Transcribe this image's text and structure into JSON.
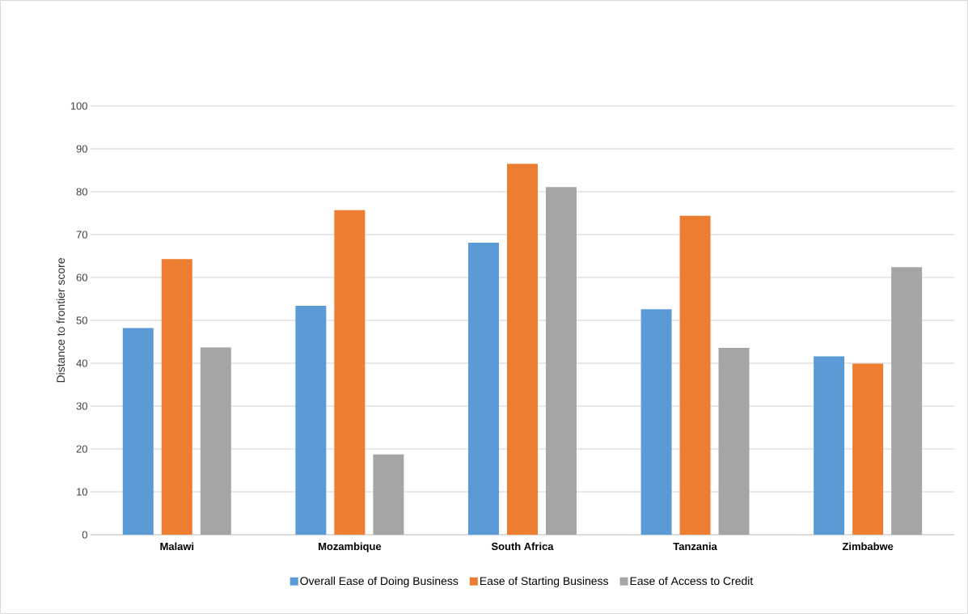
{
  "chart_data": {
    "type": "bar",
    "categories": [
      "Malawi",
      "Mozambique",
      "South Africa",
      "Tanzania",
      "Zimbabwe"
    ],
    "series": [
      {
        "name": "Overall Ease of Doing Business",
        "color": "#5b9bd5",
        "values": [
          48.2,
          53.4,
          68.1,
          52.6,
          41.6
        ]
      },
      {
        "name": "Ease of Starting Business",
        "color": "#ed7d31",
        "values": [
          64.3,
          75.7,
          86.5,
          74.4,
          39.9
        ]
      },
      {
        "name": "Ease of Access to Credit",
        "color": "#a5a5a5",
        "values": [
          43.7,
          18.7,
          81.1,
          43.6,
          62.4
        ]
      }
    ],
    "ylabel": "Distance to frontier score",
    "ylim": [
      0,
      100
    ],
    "yticks": [
      0,
      10,
      20,
      30,
      40,
      50,
      60,
      70,
      80,
      90,
      100
    ],
    "grid": "y",
    "legend": "bottom"
  }
}
